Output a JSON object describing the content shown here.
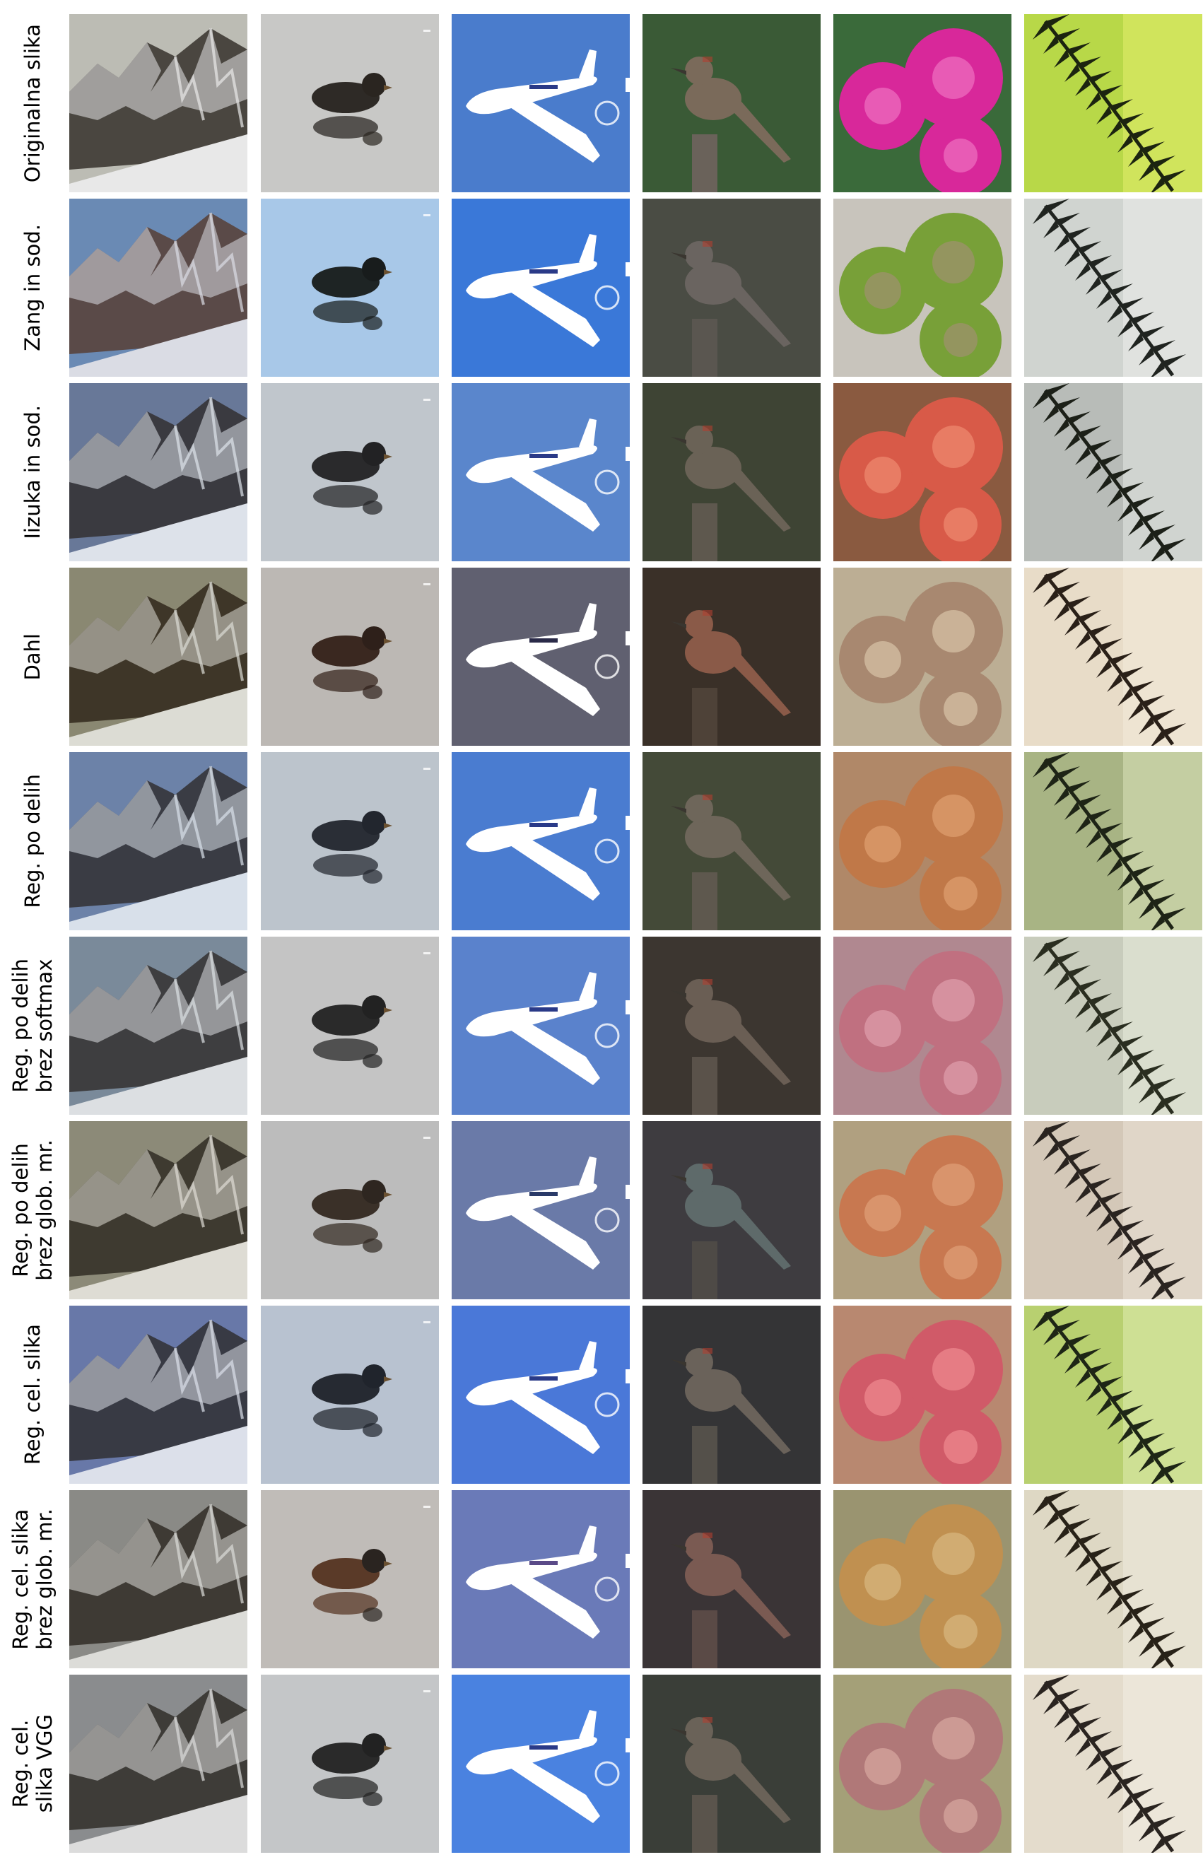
{
  "figure": {
    "columns": [
      {
        "subject": "mountain",
        "icon": "mountain-photo"
      },
      {
        "subject": "duck",
        "icon": "duck-photo"
      },
      {
        "subject": "airplane",
        "icon": "airplane-photo"
      },
      {
        "subject": "woodpecker",
        "icon": "bird-photo"
      },
      {
        "subject": "dahlia",
        "icon": "flower-photo"
      },
      {
        "subject": "fern",
        "icon": "fern-photo"
      }
    ],
    "rows": [
      {
        "label": "Originalna slika",
        "palettes": [
          {
            "sky": "#bcbcb4",
            "rock": "#4a4640",
            "snow": "#e8e8e8"
          },
          {
            "bg": "#c8c8c6",
            "bird": "#2e2a26",
            "head": "#2a2520"
          },
          {
            "bg": "#4a7ccc",
            "plane": "#ffffff",
            "accent": "#2a3a88"
          },
          {
            "bg": "#3a5a36",
            "bird": "#7a6a5a",
            "post": "#6a625a"
          },
          {
            "bg": "#3a6a3a",
            "flower": "#d8289a",
            "hi": "#f070c0"
          },
          {
            "bg": "#b8d848",
            "leaf": "#1c2410",
            "lite": "#e8f070"
          }
        ]
      },
      {
        "label": "Zang in sod.",
        "palettes": [
          {
            "sky": "#6a8ab4",
            "rock": "#5a4a48",
            "snow": "#dadce4"
          },
          {
            "bg": "#a8c8e8",
            "bird": "#1e2424",
            "head": "#181c1c"
          },
          {
            "bg": "#3a78d8",
            "plane": "#ffffff",
            "accent": "#2a3a88"
          },
          {
            "bg": "#4a4c44",
            "bird": "#6a6460",
            "post": "#5a5650"
          },
          {
            "bg": "#c8c4bc",
            "flower": "#78a038",
            "hi": "#a09070"
          },
          {
            "bg": "#d0d4d0",
            "leaf": "#202420",
            "lite": "#f0f0ee"
          }
        ]
      },
      {
        "label": "Iizuka in sod.",
        "palettes": [
          {
            "sky": "#687898",
            "rock": "#3a3a40",
            "snow": "#dde2ea"
          },
          {
            "bg": "#c0c6cc",
            "bird": "#2a2a2c",
            "head": "#222224"
          },
          {
            "bg": "#5a86cc",
            "plane": "#ffffff",
            "accent": "#2a3a88"
          },
          {
            "bg": "#3e4434",
            "bird": "#6a6256",
            "post": "#5e584e"
          },
          {
            "bg": "#8a5a40",
            "flower": "#d85a48",
            "hi": "#f08a70"
          },
          {
            "bg": "#b8bcb8",
            "leaf": "#1c2018",
            "lite": "#e8ece8"
          }
        ]
      },
      {
        "label": "Dahl",
        "palettes": [
          {
            "sky": "#8a8872",
            "rock": "#3e3628",
            "snow": "#dcdcd4"
          },
          {
            "bg": "#bcb8b4",
            "bird": "#3a2820",
            "head": "#2e201a"
          },
          {
            "bg": "#606070",
            "plane": "#ffffff",
            "accent": "#2a2a48"
          },
          {
            "bg": "#3a3028",
            "bird": "#8a5a48",
            "post": "#4e4238"
          },
          {
            "bg": "#bcae94",
            "flower": "#a88870",
            "hi": "#d8c4a8"
          },
          {
            "bg": "#e8dcc8",
            "leaf": "#2a2018",
            "lite": "#f4ecdc"
          }
        ]
      },
      {
        "label": "Reg. po delih",
        "palettes": [
          {
            "sky": "#6c82a8",
            "rock": "#3a3c44",
            "snow": "#d8e0ea"
          },
          {
            "bg": "#bcc4cc",
            "bird": "#2a2e36",
            "head": "#22262e"
          },
          {
            "bg": "#4a7cd0",
            "plane": "#ffffff",
            "accent": "#2a3a88"
          },
          {
            "bg": "#444a38",
            "bird": "#6e665a",
            "post": "#5e584e"
          },
          {
            "bg": "#b08868",
            "flower": "#c07848",
            "hi": "#e0a070"
          },
          {
            "bg": "#a8b484",
            "leaf": "#1e2416",
            "lite": "#e0e8c0"
          }
        ]
      },
      {
        "label": "Reg. po delih\nbrez softmax",
        "palettes": [
          {
            "sky": "#7a8a9a",
            "rock": "#3e3e40",
            "snow": "#dcdfe2"
          },
          {
            "bg": "#c4c4c4",
            "bird": "#2a2a2a",
            "head": "#222222"
          },
          {
            "bg": "#5a82cc",
            "plane": "#ffffff",
            "accent": "#2a3a88"
          },
          {
            "bg": "#3c3630",
            "bird": "#6a5e54",
            "post": "#5a524a"
          },
          {
            "bg": "#b08890",
            "flower": "#c07080",
            "hi": "#e0a0ac"
          },
          {
            "bg": "#c8ccbc",
            "leaf": "#2a2e20",
            "lite": "#ecf0e0"
          }
        ]
      },
      {
        "label": "Reg. po delih\nbrez glob. mr.",
        "palettes": [
          {
            "sky": "#8c8a78",
            "rock": "#3e3a30",
            "snow": "#dedcd4"
          },
          {
            "bg": "#bcbcbc",
            "bird": "#3a3028",
            "head": "#2e2620"
          },
          {
            "bg": "#6a7aa8",
            "plane": "#ffffff",
            "accent": "#2a3a68"
          },
          {
            "bg": "#3e3c40",
            "bird": "#5e6a6a",
            "post": "#4e4a46"
          },
          {
            "bg": "#b0a080",
            "flower": "#c87850",
            "hi": "#e0a078"
          },
          {
            "bg": "#d4c8b8",
            "leaf": "#2a2420",
            "lite": "#ece4d8"
          }
        ]
      },
      {
        "label": "Reg. cel. slika",
        "palettes": [
          {
            "sky": "#6878a8",
            "rock": "#383a44",
            "snow": "#dce0ea"
          },
          {
            "bg": "#b8c2d0",
            "bird": "#262a32",
            "head": "#20242c"
          },
          {
            "bg": "#4a78d8",
            "plane": "#ffffff",
            "accent": "#2a3a88"
          },
          {
            "bg": "#343436",
            "bird": "#6a625a",
            "post": "#54504a"
          },
          {
            "bg": "#b88870",
            "flower": "#d05a68",
            "hi": "#f08a90"
          },
          {
            "bg": "#b8d070",
            "leaf": "#1e2616",
            "lite": "#e4f0b8"
          }
        ]
      },
      {
        "label": "Reg. cel. slika\nbrez glob. mr.",
        "palettes": [
          {
            "sky": "#8a8a86",
            "rock": "#3e3a34",
            "snow": "#dcdcd8"
          },
          {
            "bg": "#c0bcb8",
            "bird": "#5a3a28",
            "head": "#2a2420"
          },
          {
            "bg": "#6a7ab8",
            "plane": "#ffffff",
            "accent": "#5a4a88"
          },
          {
            "bg": "#3a3436",
            "bird": "#7a5a52",
            "post": "#5a4a46"
          },
          {
            "bg": "#9a9470",
            "flower": "#c09050",
            "hi": "#d8b880"
          },
          {
            "bg": "#ded8c4",
            "leaf": "#282218",
            "lite": "#f0ece0"
          }
        ]
      },
      {
        "label": "Reg. cel.\nslika VGG",
        "palettes": [
          {
            "sky": "#8a8c8e",
            "rock": "#3e3c38",
            "snow": "#dcdcdc"
          },
          {
            "bg": "#c4c6c8",
            "bird": "#2a2a2a",
            "head": "#222222"
          },
          {
            "bg": "#4a82e0",
            "plane": "#ffffff",
            "accent": "#2a3a88"
          },
          {
            "bg": "#3a3e38",
            "bird": "#6a6258",
            "post": "#5a544c"
          },
          {
            "bg": "#a4a078",
            "flower": "#b07878",
            "hi": "#d8a8a0"
          },
          {
            "bg": "#e4dccc",
            "leaf": "#2a2420",
            "lite": "#f4f0e6"
          }
        ]
      }
    ]
  }
}
